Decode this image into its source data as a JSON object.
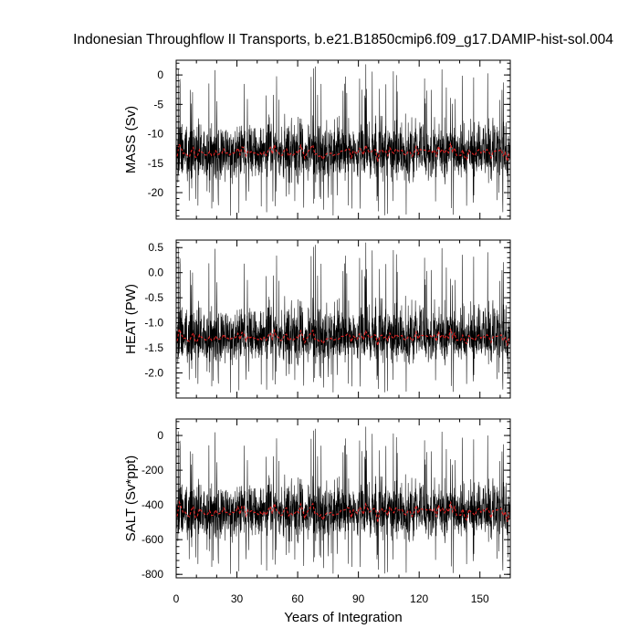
{
  "chart_data": {
    "type": "line",
    "title": "Indonesian Throughflow II Transports, b.e21.B1850cmip6.f09_g17.DAMIP-hist-sol.004",
    "xlabel": "Years of Integration",
    "xlim": [
      0,
      165
    ],
    "x_ticks": [
      0,
      30,
      60,
      90,
      120,
      150
    ],
    "x_tick_labels": [
      "0",
      "30",
      "60",
      "90",
      "120",
      "150"
    ],
    "panels": [
      {
        "ylabel": "MASS (Sv)",
        "ylim": [
          -24.5,
          2.5
        ],
        "y_ticks": [
          0,
          -5,
          -10,
          -15,
          -20
        ],
        "y_tick_labels": [
          "0",
          "-5",
          "-10",
          "-15",
          "-20"
        ],
        "series": [
          {
            "role": "monthly",
            "color": "#000000",
            "mean": -13.2,
            "min": -24.0,
            "max": 1.8
          },
          {
            "role": "annual mean",
            "color": "#e32222",
            "mean": -13.2,
            "min": -15.2,
            "max": -11.0
          }
        ]
      },
      {
        "ylabel": "HEAT (PW)",
        "ylim": [
          -2.5,
          0.65
        ],
        "y_ticks": [
          0.5,
          0.0,
          -0.5,
          -1.0,
          -1.5,
          -2.0
        ],
        "y_tick_labels": [
          "0.5",
          "0.0",
          "-0.5",
          "-1.0",
          "-1.5",
          "-2.0"
        ],
        "series": [
          {
            "role": "monthly",
            "color": "#000000",
            "mean": -1.3,
            "min": -2.4,
            "max": 0.6
          },
          {
            "role": "annual mean",
            "color": "#e32222",
            "mean": -1.3,
            "min": -1.5,
            "max": -1.05
          }
        ]
      },
      {
        "ylabel": "SALT (Sv*ppt)",
        "ylim": [
          -820,
          95
        ],
        "y_ticks": [
          0,
          -200,
          -400,
          -600,
          -800
        ],
        "y_tick_labels": [
          "0",
          "-200",
          "-400",
          "-600",
          "-800"
        ],
        "series": [
          {
            "role": "monthly",
            "color": "#000000",
            "mean": -440,
            "min": -800,
            "max": 50
          },
          {
            "role": "annual mean",
            "color": "#e32222",
            "mean": -440,
            "min": -520,
            "max": -360
          }
        ]
      }
    ]
  }
}
